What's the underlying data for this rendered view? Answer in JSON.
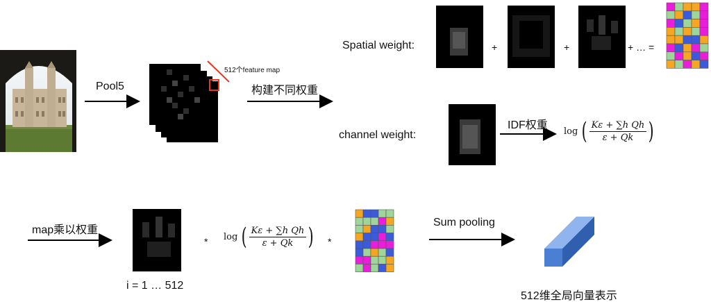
{
  "labels": {
    "pool5": "Pool5",
    "feature_maps_note": "512个feature map",
    "build_weights": "构建不同权重",
    "spatial_weight": "Spatial weight:",
    "channel_weight": "channel weight:",
    "idf_weight": "IDF权重",
    "map_times_weight": "map乘以权重",
    "sum_pooling": "Sum pooling",
    "index_range": "i = 1 … 512",
    "vector_repr": "512维全局向量表示"
  },
  "operators": {
    "plus": "+",
    "plus_ellipsis_equals": "+ … =",
    "times": "*"
  },
  "formula": {
    "log": "log",
    "numerator": "Kε + ∑h Qh",
    "denominator": "ε + Qk"
  },
  "colors": {
    "grid_palette": [
      "#f5a623",
      "#e91eda",
      "#9fd49a",
      "#3b5bdb"
    ],
    "arrow": "#000000",
    "highlight_box": "#e8391f",
    "red_line": "#e8391f",
    "bar_front": "#4a7fd4",
    "bar_top": "#8fb4ee",
    "bar_side": "#2f5fae"
  },
  "icons": [
    "photo-building",
    "feature-map-stack",
    "heatmap",
    "color-grid",
    "vector-bar"
  ]
}
